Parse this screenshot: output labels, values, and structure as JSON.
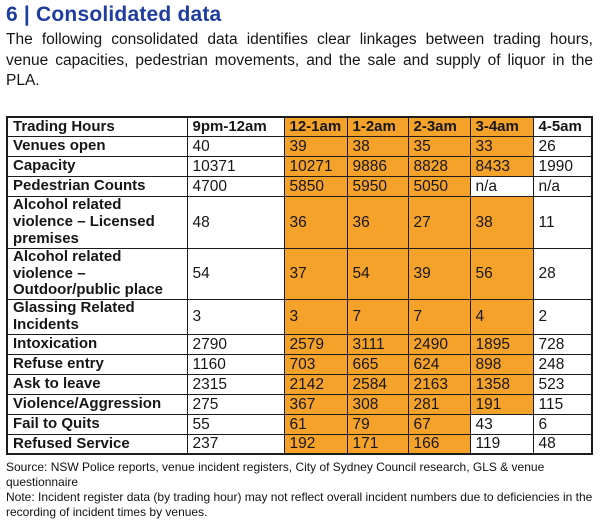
{
  "page": {
    "title": "6 | Consolidated data",
    "intro": "The following consolidated data identifies clear linkages between trading hours, venue capacities, pedestrian movements, and the sale and supply of liquor in the PLA.",
    "source": "Source: NSW Police reports, venue incident registers, City of Sydney Council research, GLS & venue questionnaire",
    "note": "Note: Incident register data (by trading hour) may not reflect overall incident numbers due to deficiencies in the recording of incident times by venues."
  },
  "colors": {
    "heading_blue": "#1f3d9e",
    "highlight_orange": "#f5a22b",
    "border_black": "#1c1c1c"
  },
  "table": {
    "columns": [
      "Trading Hours",
      "9pm-12am",
      "12-1am",
      "1-2am",
      "2-3am",
      "3-4am",
      "4-5am"
    ],
    "header_highlight": [
      false,
      false,
      true,
      true,
      true,
      true,
      false
    ],
    "rows": [
      {
        "label": "Venues open",
        "values": [
          "40",
          "39",
          "38",
          "35",
          "33",
          "26"
        ],
        "highlight": [
          false,
          true,
          true,
          true,
          true,
          false
        ]
      },
      {
        "label": "Capacity",
        "values": [
          "10371",
          "10271",
          "9886",
          "8828",
          "8433",
          "1990"
        ],
        "highlight": [
          false,
          true,
          true,
          true,
          true,
          false
        ]
      },
      {
        "label": "Pedestrian Counts",
        "values": [
          "4700",
          "5850",
          "5950",
          "5050",
          "n/a",
          "n/a"
        ],
        "highlight": [
          false,
          true,
          true,
          true,
          false,
          false
        ]
      },
      {
        "label": "Alcohol related violence – Licensed premises",
        "values": [
          "48",
          "36",
          "36",
          "27",
          "38",
          "11"
        ],
        "highlight": [
          false,
          true,
          true,
          true,
          true,
          false
        ]
      },
      {
        "label": "Alcohol related violence – Outdoor/public place",
        "values": [
          "54",
          "37",
          "54",
          "39",
          "56",
          "28"
        ],
        "highlight": [
          false,
          true,
          true,
          true,
          true,
          false
        ]
      },
      {
        "label": "Glassing Related Incidents",
        "values": [
          "3",
          "3",
          "7",
          "7",
          "4",
          "2"
        ],
        "highlight": [
          false,
          true,
          true,
          true,
          true,
          false
        ]
      },
      {
        "label": "Intoxication",
        "values": [
          "2790",
          "2579",
          "3111",
          "2490",
          "1895",
          "728"
        ],
        "highlight": [
          false,
          true,
          true,
          true,
          true,
          false
        ]
      },
      {
        "label": "Refuse entry",
        "values": [
          "1160",
          "703",
          "665",
          "624",
          "898",
          "248"
        ],
        "highlight": [
          false,
          true,
          true,
          true,
          true,
          false
        ]
      },
      {
        "label": "Ask to leave",
        "values": [
          "2315",
          "2142",
          "2584",
          "2163",
          "1358",
          "523"
        ],
        "highlight": [
          false,
          true,
          true,
          true,
          true,
          false
        ]
      },
      {
        "label": "Violence/Aggression",
        "values": [
          "275",
          "367",
          "308",
          "281",
          "191",
          "115"
        ],
        "highlight": [
          false,
          true,
          true,
          true,
          true,
          false
        ]
      },
      {
        "label": "Fail to Quits",
        "values": [
          "55",
          "61",
          "79",
          "67",
          "43",
          "6"
        ],
        "highlight": [
          false,
          true,
          true,
          true,
          false,
          false
        ]
      },
      {
        "label": "Refused Service",
        "values": [
          "237",
          "192",
          "171",
          "166",
          "119",
          "48"
        ],
        "highlight": [
          false,
          true,
          true,
          true,
          false,
          false
        ]
      }
    ]
  }
}
